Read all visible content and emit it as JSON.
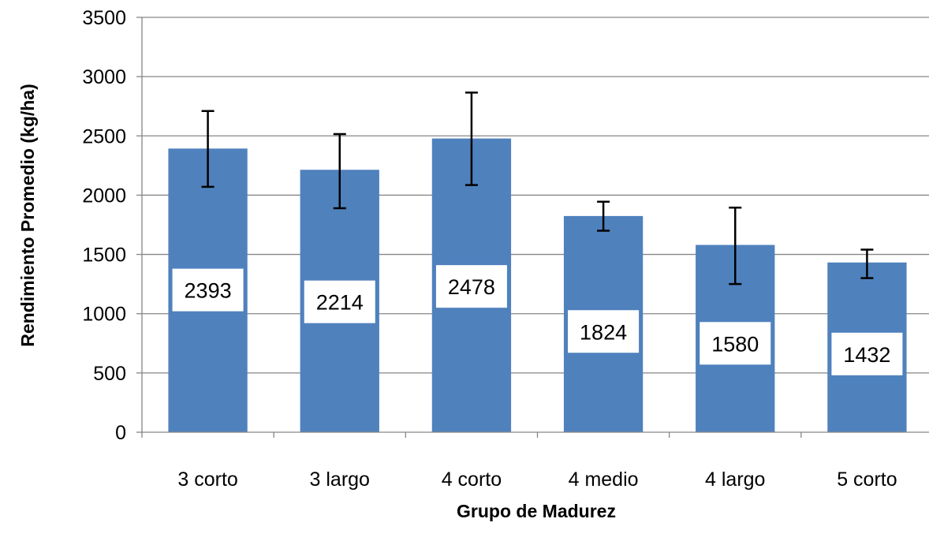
{
  "chart_data": {
    "type": "bar",
    "title": "",
    "xlabel": "Grupo de Madurez",
    "ylabel": "Rendimiento Promedio (kg/ha)",
    "ylim": [
      0,
      3500
    ],
    "yticks": [
      0,
      500,
      1000,
      1500,
      2000,
      2500,
      3000,
      3500
    ],
    "grid": true,
    "legend": "none",
    "categories": [
      "3 corto",
      "3 largo",
      "4 corto",
      "4 medio",
      "4 largo",
      "5 corto"
    ],
    "values": [
      2393,
      2214,
      2478,
      1824,
      1580,
      1432
    ],
    "data_labels": [
      "2393",
      "2214",
      "2478",
      "1824",
      "1580",
      "1432"
    ],
    "data_label_positions": [
      1200,
      1100,
      1230,
      850,
      750,
      660
    ],
    "error_bars": [
      {
        "low": 2070,
        "high": 2710
      },
      {
        "low": 1890,
        "high": 2515
      },
      {
        "low": 2085,
        "high": 2865
      },
      {
        "low": 1700,
        "high": 1945
      },
      {
        "low": 1250,
        "high": 1895
      },
      {
        "low": 1300,
        "high": 1540
      }
    ],
    "bar_color": "#4F81BD",
    "grid_color": "#868686"
  }
}
